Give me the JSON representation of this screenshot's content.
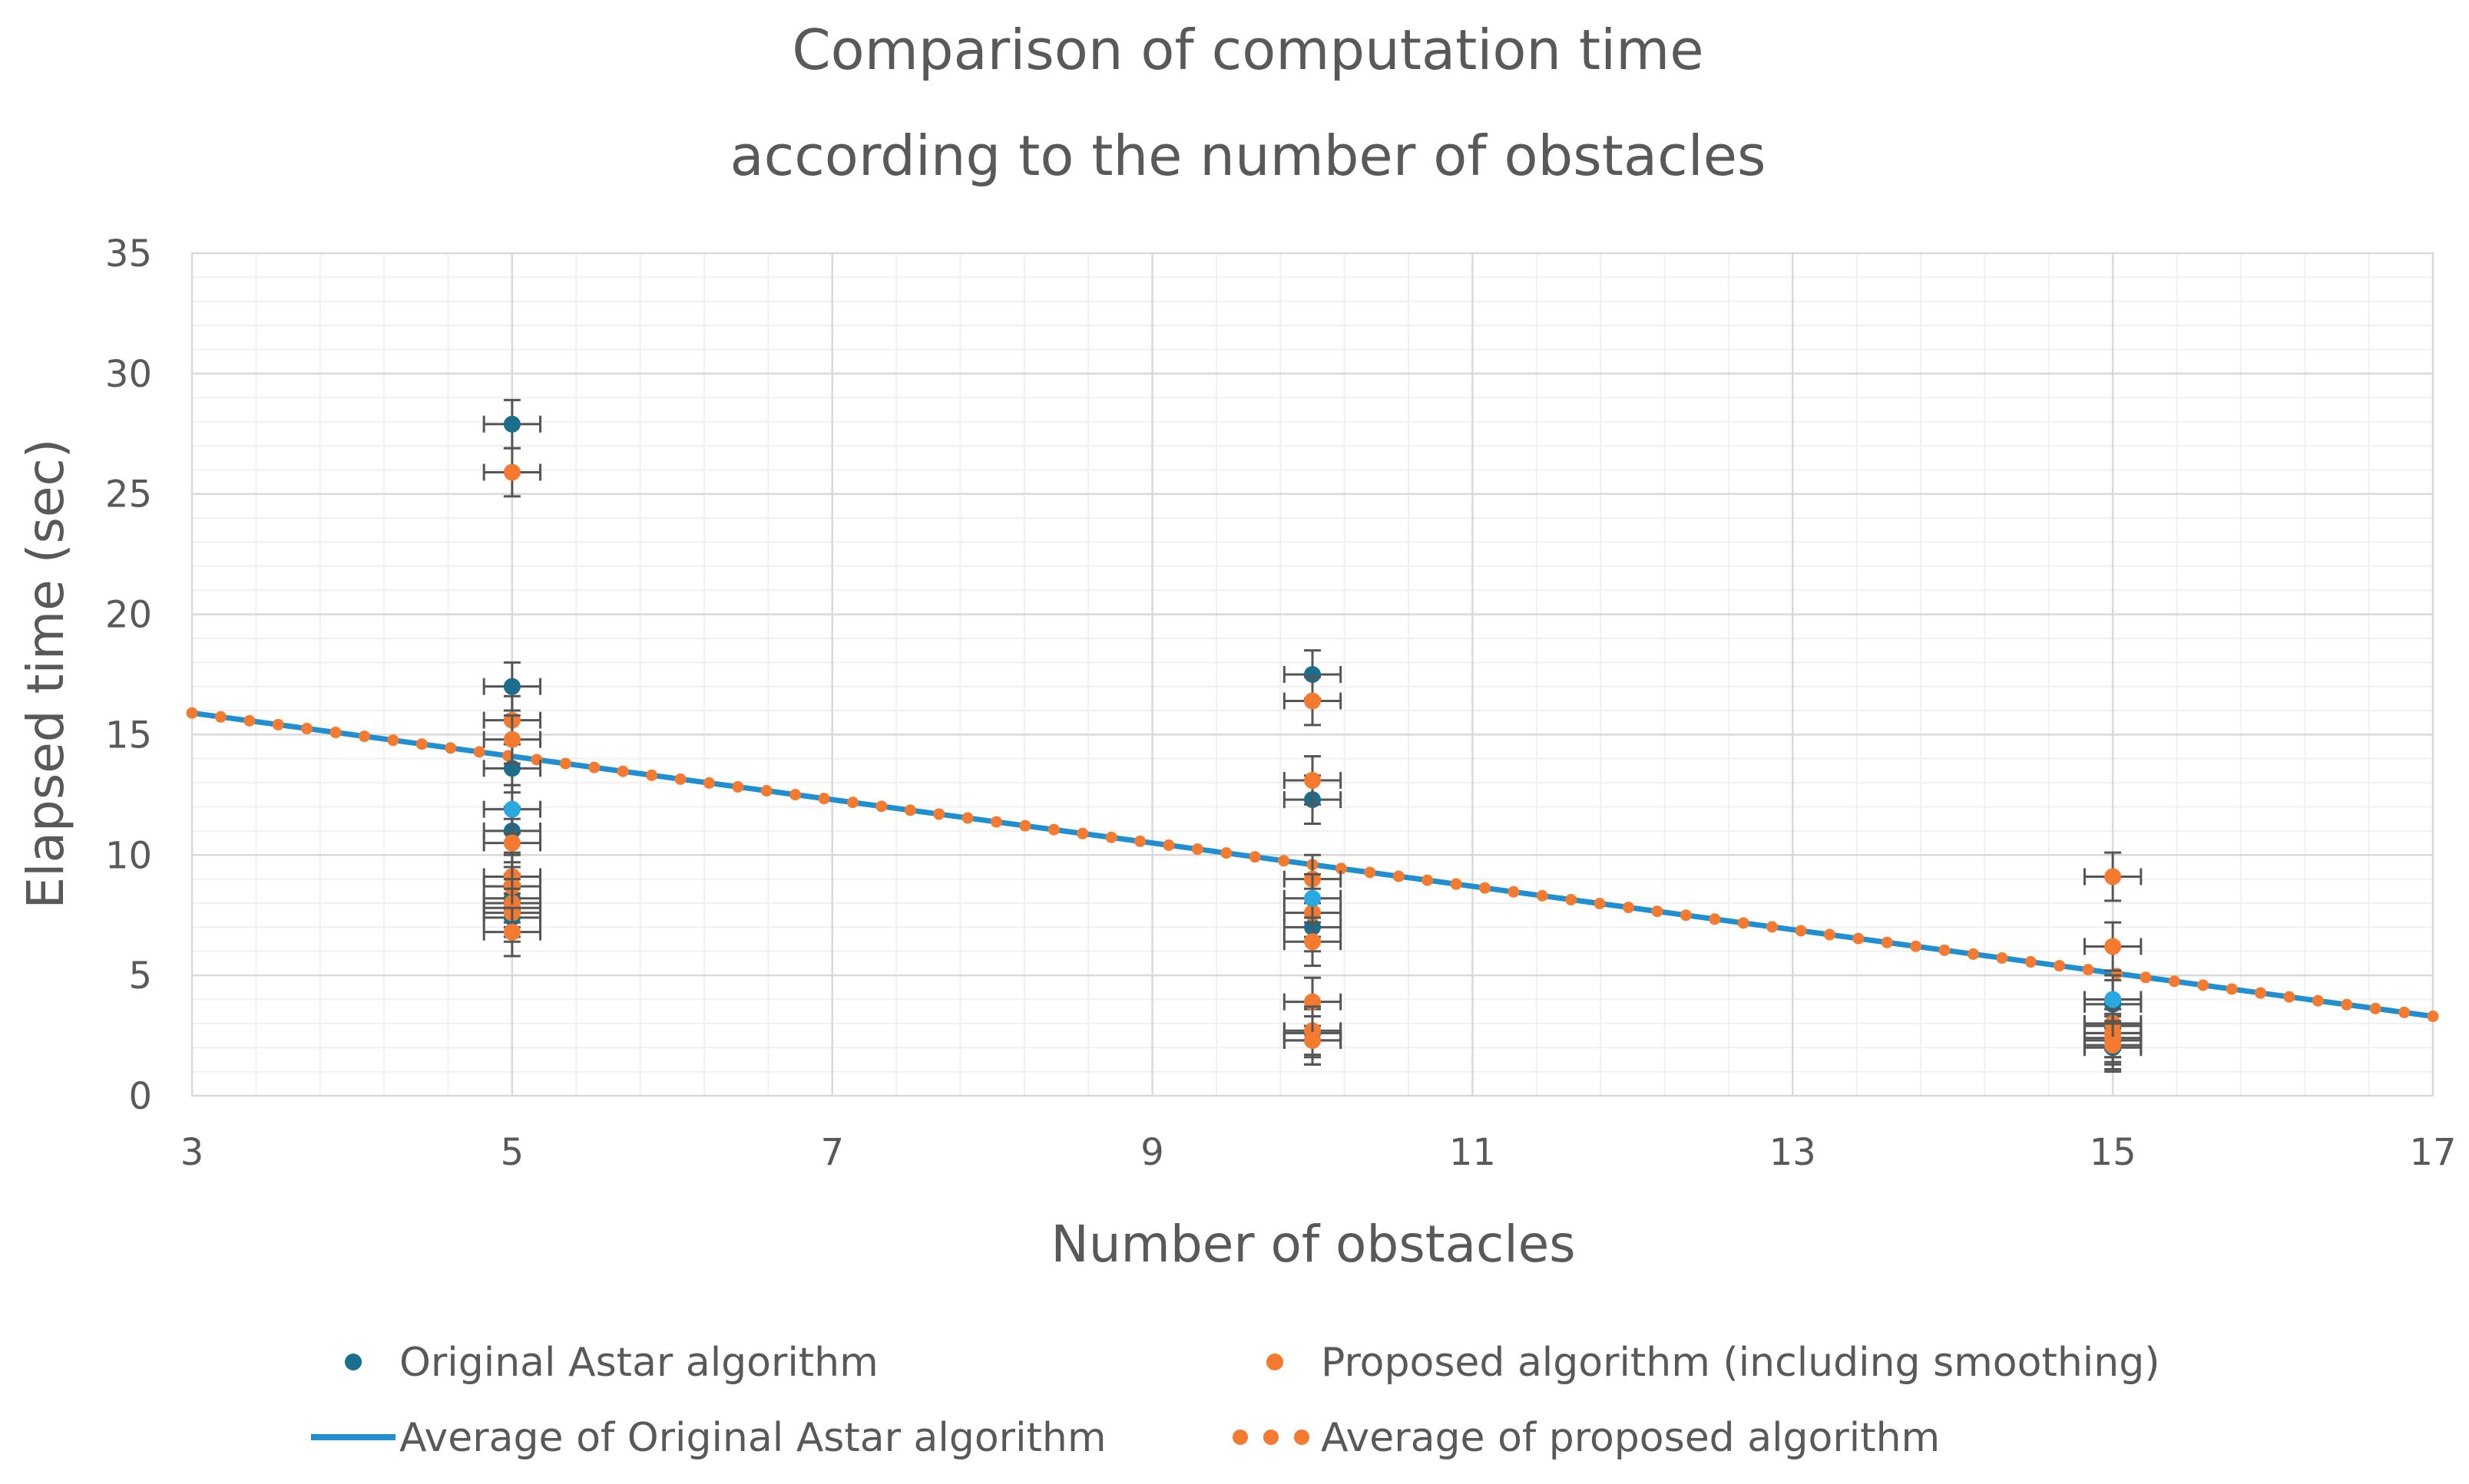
{
  "chart_data": {
    "type": "scatter",
    "title_lines": [
      "Comparison of computation time",
      "according to the number of obstacles"
    ],
    "xlabel": "Number of obstacles",
    "ylabel": "Elapsed time (sec)",
    "xlim": [
      3,
      17
    ],
    "ylim": [
      0,
      35
    ],
    "x_ticks": [
      3,
      5,
      7,
      9,
      11,
      13,
      15,
      17
    ],
    "x_tick_labels": [
      "3",
      "5",
      "7",
      "9",
      "11",
      "13",
      "15",
      "17"
    ],
    "y_ticks": [
      0,
      5,
      10,
      15,
      20,
      25,
      30,
      35
    ],
    "y_tick_labels": [
      "0",
      "5",
      "10",
      "15",
      "20",
      "25",
      "30",
      "35"
    ],
    "grid": true,
    "error_bar": 1.0,
    "series": [
      {
        "name": "Original Astar algorithm",
        "kind": "points",
        "color": "#1b6f8c",
        "x": [
          5,
          5,
          5,
          5,
          5,
          5,
          5,
          10,
          10,
          10,
          10,
          10,
          15,
          15,
          15,
          15,
          15
        ],
        "y": [
          27.9,
          17.0,
          13.6,
          11.0,
          8.2,
          7.8,
          7.4,
          17.5,
          12.3,
          7.0,
          2.6,
          2.3,
          3.8,
          2.9,
          2.6,
          2.3,
          2.0
        ]
      },
      {
        "name": "Proposed algorithm (including smoothing)",
        "kind": "points",
        "color": "#f47a2f",
        "x": [
          5,
          5,
          5,
          5,
          5,
          5,
          5,
          5,
          5,
          10,
          10,
          10,
          10,
          10,
          10,
          10,
          10,
          15,
          15,
          15,
          15,
          15,
          15
        ],
        "y": [
          25.9,
          15.6,
          14.8,
          10.5,
          9.1,
          8.7,
          8.0,
          7.6,
          6.8,
          16.4,
          13.1,
          9.0,
          7.6,
          6.4,
          3.9,
          2.7,
          2.3,
          9.1,
          6.2,
          3.0,
          2.6,
          2.4,
          2.1
        ]
      },
      {
        "name": "Average of Original Astar algorithm",
        "kind": "line",
        "color": "#1f8fd1",
        "x": [
          3,
          17
        ],
        "y": [
          15.9,
          3.3
        ]
      },
      {
        "name": "Average of proposed algorithm",
        "kind": "dotted-line",
        "color": "#f47a2f",
        "x": [
          3,
          17
        ],
        "y": [
          15.9,
          3.3
        ]
      }
    ],
    "highlight_points": [
      {
        "x": 5,
        "y": 11.9,
        "color": "#29a9e0"
      },
      {
        "x": 10,
        "y": 8.2,
        "color": "#29a9e0"
      },
      {
        "x": 15,
        "y": 4.0,
        "color": "#29a9e0"
      }
    ],
    "legend": {
      "placement": "bottom",
      "entries": [
        {
          "label": "Original Astar algorithm",
          "marker": "dot",
          "color": "#1b6f8c"
        },
        {
          "label": "Proposed algorithm (including smoothing)",
          "marker": "dot",
          "color": "#f47a2f"
        },
        {
          "label": "Average of Original Astar algorithm",
          "marker": "line",
          "color": "#1f8fd1"
        },
        {
          "label": "Average of proposed algorithm",
          "marker": "dots",
          "color": "#f47a2f"
        }
      ]
    }
  }
}
